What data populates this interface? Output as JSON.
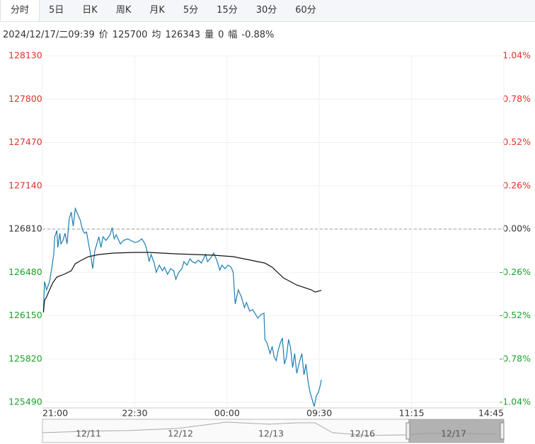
{
  "tabs": [
    "分时",
    "5日",
    "日K",
    "周K",
    "月K",
    "5分",
    "15分",
    "30分",
    "60分"
  ],
  "info": {
    "datetime": "2024/12/17/二09:39",
    "price_label": "价",
    "price": 125700,
    "avg_label": "均",
    "avg": 126343,
    "volume_label": "量",
    "volume": 0,
    "change_label": "幅",
    "change": "-0.88%"
  },
  "chart_data": {
    "type": "line",
    "xlim": [
      0,
      450
    ],
    "xticks": [
      {
        "value": 0,
        "label": "21:00"
      },
      {
        "value": 90,
        "label": "22:30"
      },
      {
        "value": 180,
        "label": "00:00"
      },
      {
        "value": 270,
        "label": "09:30"
      },
      {
        "value": 360,
        "label": "11:15"
      },
      {
        "value": 450,
        "label": "14:45"
      }
    ],
    "ylim": [
      125490,
      128130
    ],
    "yticks": [
      128130,
      127800,
      127470,
      127140,
      126810,
      126480,
      126150,
      125820,
      125490
    ],
    "y2lim": [
      -1.04,
      1.04
    ],
    "y2ticks": [
      {
        "value": 1.04,
        "label": "1.04%"
      },
      {
        "value": 0.78,
        "label": "0.78%"
      },
      {
        "value": 0.52,
        "label": "0.52%"
      },
      {
        "value": 0.26,
        "label": "0.26%"
      },
      {
        "value": 0,
        "label": "0.00%"
      },
      {
        "value": -0.26,
        "label": "-0.26%"
      },
      {
        "value": -0.52,
        "label": "-0.52%"
      },
      {
        "value": -0.78,
        "label": "-0.78%"
      },
      {
        "value": -1.04,
        "label": "-1.04%"
      }
    ],
    "grid": true,
    "series": [
      {
        "color": "#1b7db3",
        "x": [
          1,
          2,
          4,
          7,
          9,
          11,
          12,
          14,
          15,
          17,
          18,
          20,
          22,
          24,
          26,
          28,
          30,
          32,
          35,
          37,
          39,
          41,
          43,
          45,
          47,
          49,
          51,
          53,
          55,
          57,
          59,
          62,
          66,
          68,
          70,
          72,
          76,
          79,
          83,
          86,
          90,
          93,
          97,
          100,
          102,
          104,
          106,
          109,
          111,
          114,
          117,
          119,
          122,
          125,
          128,
          130,
          133,
          136,
          138,
          141,
          144,
          146,
          149,
          152,
          155,
          159,
          161,
          164,
          167,
          170,
          173,
          175,
          178,
          181,
          184,
          186,
          188,
          191,
          194,
          197,
          199,
          202,
          205,
          208,
          210,
          213,
          216,
          217,
          219,
          222,
          224,
          226,
          228,
          230,
          232,
          234,
          236,
          238,
          240,
          242,
          244,
          246,
          248,
          251,
          253,
          255,
          257,
          259,
          261,
          263,
          265,
          267,
          269,
          271,
          272
        ],
        "values": [
          126185,
          126411,
          126347,
          126411,
          126508,
          126616,
          126751,
          126799,
          126670,
          126778,
          126697,
          126724,
          126778,
          126697,
          126885,
          126939,
          126832,
          126966,
          126912,
          126875,
          126805,
          126778,
          126788,
          126697,
          126616,
          126508,
          126643,
          126697,
          126751,
          126670,
          126751,
          126724,
          126767,
          126821,
          126735,
          126767,
          126697,
          126724,
          126735,
          126724,
          126708,
          126713,
          126735,
          126697,
          126643,
          126562,
          126616,
          126551,
          126481,
          126535,
          126492,
          126519,
          126465,
          126508,
          126492,
          126427,
          126481,
          126508,
          126562,
          126535,
          126584,
          126562,
          126551,
          126573,
          126551,
          126616,
          126562,
          126589,
          126627,
          126573,
          126497,
          126535,
          126508,
          126535,
          126519,
          126481,
          126239,
          126347,
          126293,
          126212,
          126250,
          126185,
          126196,
          126158,
          126131,
          126158,
          126169,
          125969,
          125942,
          125862,
          125916,
          125835,
          125808,
          125889,
          125942,
          125980,
          125781,
          125835,
          125969,
          125905,
          125754,
          125862,
          125711,
          125808,
          125862,
          125700,
          125781,
          125646,
          125565,
          125511,
          125458,
          125538,
          125565,
          125619,
          125662
        ]
      },
      {
        "color": "#111111",
        "x": [
          1,
          2,
          4,
          7,
          10,
          14,
          21,
          28,
          32,
          38,
          45,
          55,
          69,
          90,
          104,
          131,
          166,
          186,
          200,
          217,
          224,
          235,
          248,
          262,
          266,
          272
        ],
        "values": [
          126174,
          126266,
          126293,
          126347,
          126400,
          126444,
          126465,
          126492,
          126546,
          126573,
          126600,
          126616,
          126627,
          126632,
          126632,
          126621,
          126611,
          126600,
          126578,
          126551,
          126519,
          126438,
          126384,
          126347,
          126330,
          126343
        ]
      }
    ]
  },
  "navigator": {
    "dates": [
      "12/11",
      "12/12",
      "12/13",
      "12/16",
      "12/17"
    ]
  }
}
